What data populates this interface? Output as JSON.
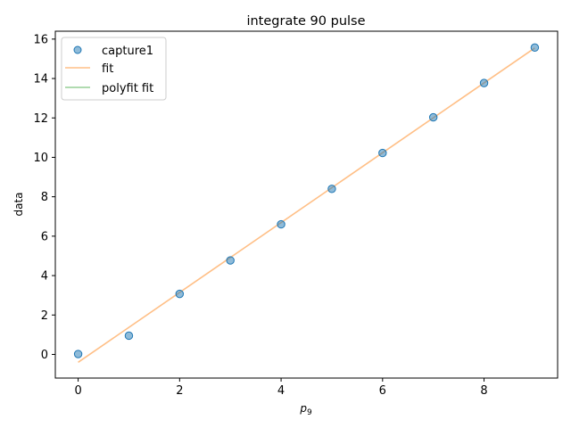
{
  "chart_data": {
    "type": "scatter",
    "title": "integrate 90 pulse",
    "xlabel_base": "p",
    "xlabel_sub": "9",
    "ylabel": "data",
    "xlim": [
      -0.45,
      9.45
    ],
    "ylim": [
      -1.2,
      16.4
    ],
    "xticks": [
      0,
      2,
      4,
      6,
      8
    ],
    "yticks": [
      0,
      2,
      4,
      6,
      8,
      10,
      12,
      14,
      16
    ],
    "grid": false,
    "legend_position": "top-left",
    "series": [
      {
        "name": "capture1",
        "kind": "markers",
        "color": "#1f77b4",
        "x": [
          0,
          1,
          2,
          3,
          4,
          5,
          6,
          7,
          8,
          9
        ],
        "y": [
          0.02,
          0.95,
          3.07,
          4.77,
          6.6,
          8.4,
          10.22,
          12.03,
          13.77,
          15.57
        ]
      },
      {
        "name": "fit",
        "kind": "line",
        "color": "#ff7f0e",
        "x": [
          0,
          9
        ],
        "y": [
          -0.4,
          15.55
        ]
      },
      {
        "name": "polyfit fit",
        "kind": "line",
        "color": "#2ca02c",
        "x": [],
        "y": []
      }
    ]
  }
}
